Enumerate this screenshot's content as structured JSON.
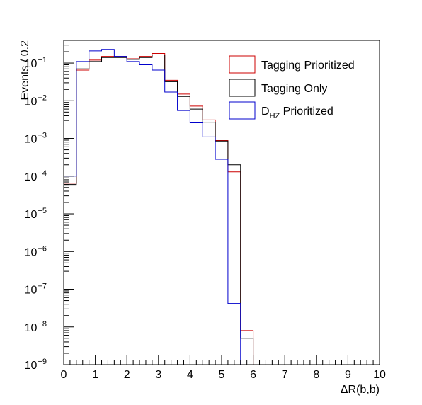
{
  "chart_data": {
    "type": "step-histogram",
    "xlabel": "ΔR(b,b)",
    "ylabel": "Events / 0.2",
    "xlim": [
      0,
      10
    ],
    "ylim": [
      1e-09,
      0.4
    ],
    "yscale": "log",
    "x_ticks": [
      "0",
      "1",
      "2",
      "3",
      "4",
      "5",
      "6",
      "7",
      "8",
      "9",
      "10"
    ],
    "y_ticks": [
      {
        "base": "10",
        "exp": "−9"
      },
      {
        "base": "10",
        "exp": "−8"
      },
      {
        "base": "10",
        "exp": "−7"
      },
      {
        "base": "10",
        "exp": "−6"
      },
      {
        "base": "10",
        "exp": "−5"
      },
      {
        "base": "10",
        "exp": "−4"
      },
      {
        "base": "10",
        "exp": "−3"
      },
      {
        "base": "10",
        "exp": "−2"
      },
      {
        "base": "10",
        "exp": "−1"
      }
    ],
    "legend_position": "top-right",
    "bin_edges": [
      0,
      0.4,
      0.8,
      1.2,
      1.6,
      2.0,
      2.4,
      2.8,
      3.2,
      3.6,
      4.0,
      4.4,
      4.8,
      5.2,
      5.6,
      6.0
    ],
    "series": [
      {
        "name": "Tagging Prioritized",
        "color": "#cc0000",
        "values": [
          6.5e-05,
          0.065,
          0.12,
          0.15,
          0.15,
          0.13,
          0.15,
          0.18,
          0.035,
          0.015,
          0.0072,
          0.0031,
          0.00088,
          0.00013,
          8e-09
        ]
      },
      {
        "name": "Tagging Only",
        "color": "#000000",
        "values": [
          6e-05,
          0.07,
          0.11,
          0.14,
          0.14,
          0.125,
          0.14,
          0.165,
          0.032,
          0.013,
          0.006,
          0.0027,
          0.00085,
          0.0002,
          5e-09
        ]
      },
      {
        "name": "D_HZ Prioritized",
        "color": "#0000cc",
        "values": [
          0.0001,
          0.11,
          0.21,
          0.23,
          0.15,
          0.11,
          0.09,
          0.065,
          0.017,
          0.0055,
          0.0026,
          0.0011,
          0.00028,
          4.2e-08,
          1e-09
        ]
      }
    ],
    "legend_labels": [
      {
        "main": "Tagging Prioritized",
        "sub": ""
      },
      {
        "main": "Tagging Only",
        "sub": ""
      },
      {
        "main": "D",
        "sub": "HZ",
        "tail": " Prioritized"
      }
    ]
  }
}
